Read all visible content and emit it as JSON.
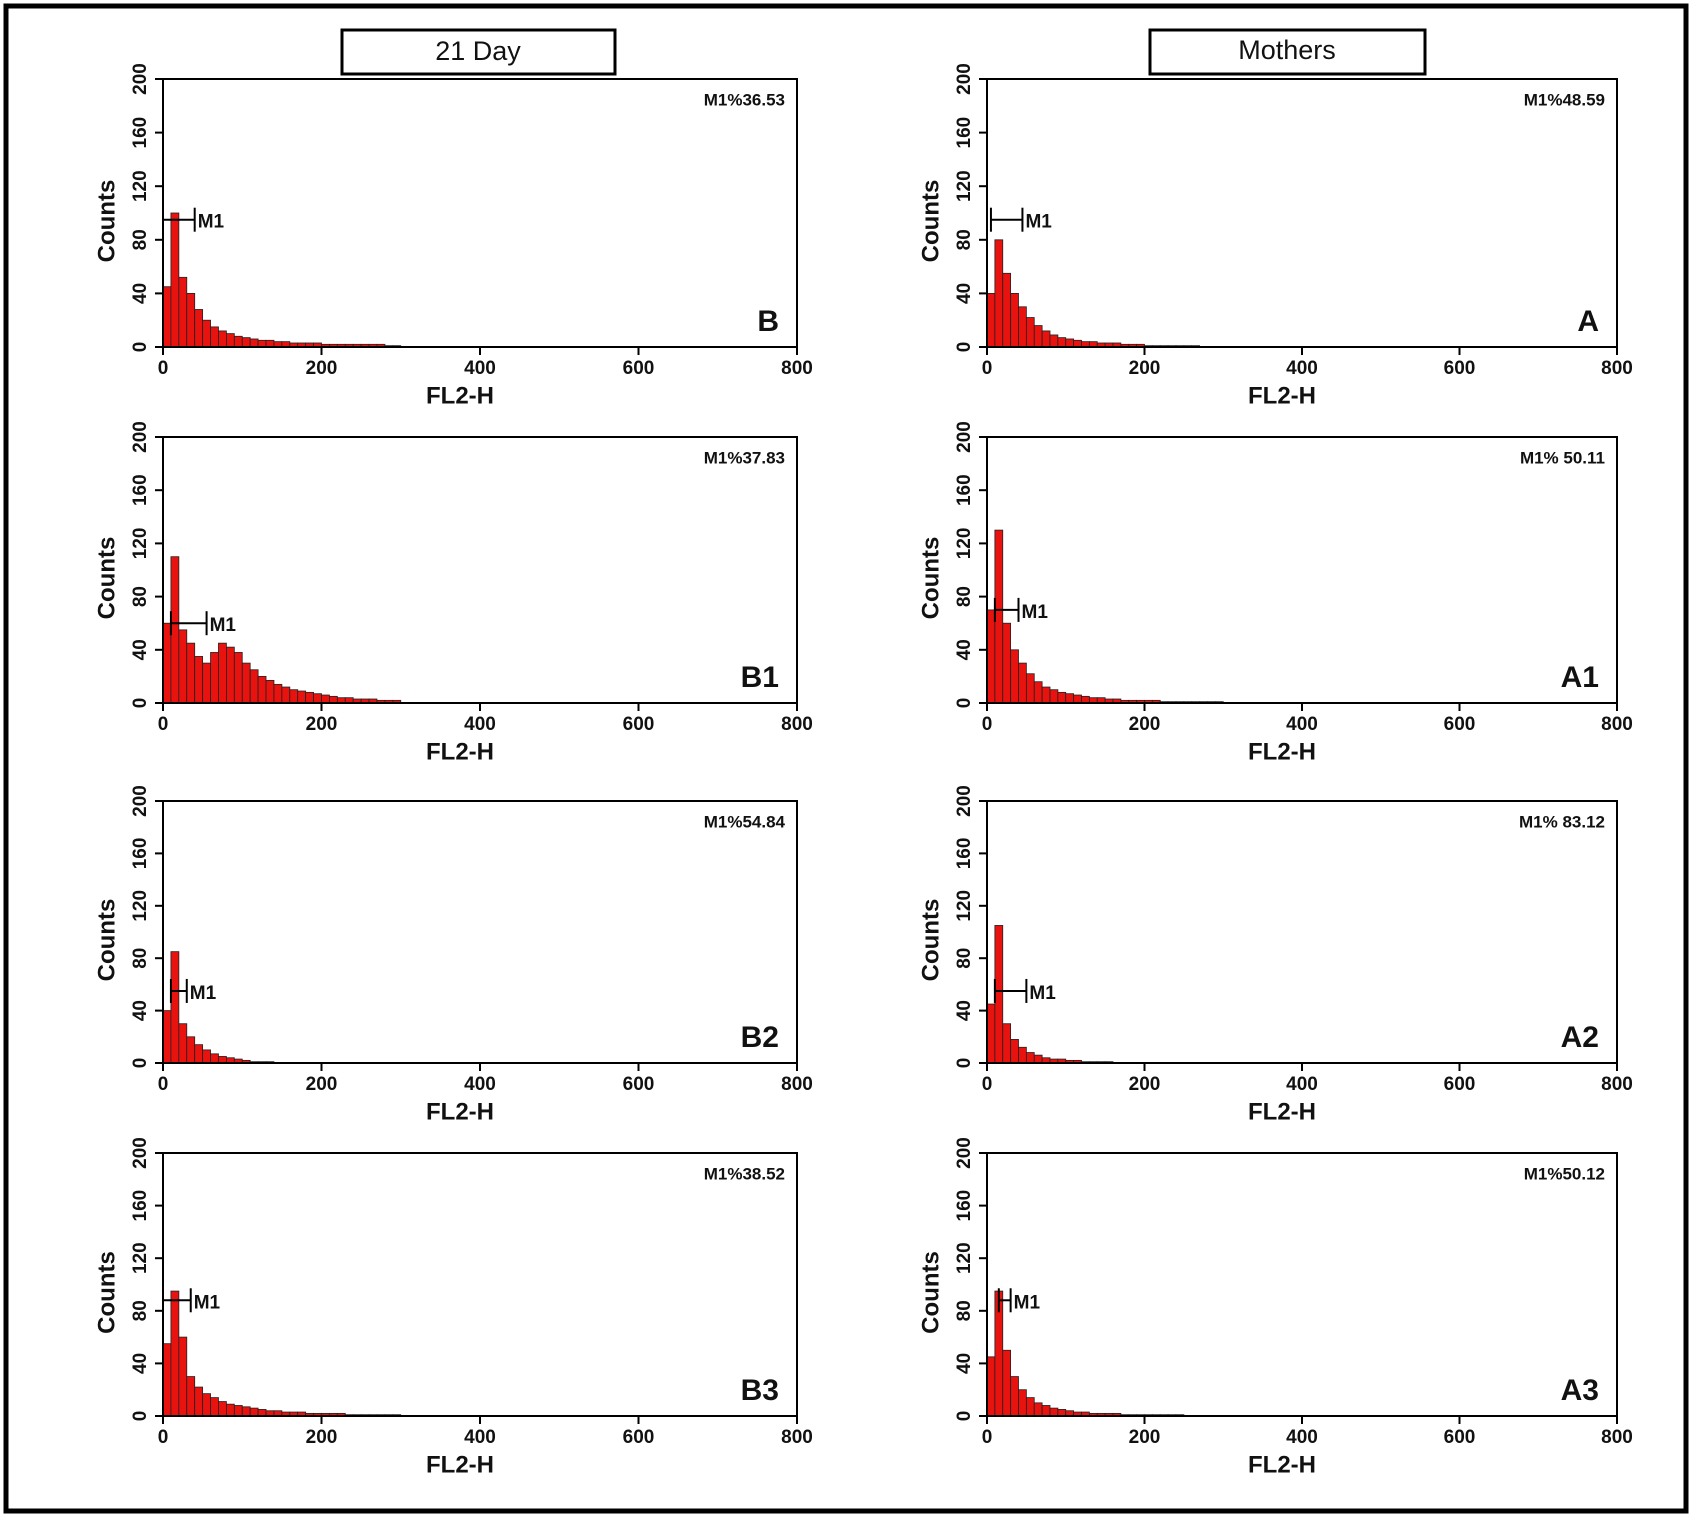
{
  "headers": [
    "21 Day",
    "Mothers"
  ],
  "chart_data": [
    {
      "type": "histogram",
      "panel": "B",
      "annotation": "M1%36.53",
      "xlabel": "FL2-H",
      "ylabel": "Counts",
      "color": "#e8120f",
      "bins": [
        0,
        10,
        20,
        30,
        40,
        50,
        60,
        70,
        80,
        90,
        100,
        110,
        120,
        130,
        140,
        150,
        160,
        170,
        180,
        190,
        200,
        210,
        220,
        230,
        240,
        250,
        260,
        270,
        280,
        290,
        300
      ],
      "counts": [
        45,
        100,
        52,
        40,
        28,
        20,
        15,
        12,
        10,
        8,
        7,
        6,
        5,
        5,
        4,
        4,
        3,
        3,
        3,
        3,
        2,
        2,
        2,
        2,
        2,
        2,
        2,
        2,
        1,
        1
      ],
      "marker": {
        "label": "M1",
        "range": [
          0,
          40
        ],
        "y": 95
      },
      "xlim": [
        0,
        800
      ],
      "xticks": [
        0,
        200,
        400,
        600,
        800
      ],
      "ylim": [
        0,
        200
      ],
      "yticks": [
        0,
        40,
        80,
        120,
        160,
        200
      ]
    },
    {
      "type": "histogram",
      "panel": "B1",
      "annotation": "M1%37.83",
      "xlabel": "FL2-H",
      "ylabel": "Counts",
      "color": "#e8120f",
      "bins": [
        0,
        10,
        20,
        30,
        40,
        50,
        60,
        70,
        80,
        90,
        100,
        110,
        120,
        130,
        140,
        150,
        160,
        170,
        180,
        190,
        200,
        210,
        220,
        230,
        240,
        250,
        260,
        270,
        280,
        290,
        300
      ],
      "counts": [
        60,
        110,
        55,
        45,
        35,
        30,
        38,
        45,
        42,
        38,
        30,
        25,
        20,
        17,
        14,
        12,
        10,
        9,
        8,
        7,
        6,
        5,
        4,
        4,
        3,
        3,
        3,
        2,
        2,
        2
      ],
      "marker": {
        "label": "M1",
        "range": [
          10,
          55
        ],
        "y": 60
      },
      "xlim": [
        0,
        800
      ],
      "xticks": [
        0,
        200,
        400,
        600,
        800
      ],
      "ylim": [
        0,
        200
      ],
      "yticks": [
        0,
        40,
        80,
        120,
        160,
        200
      ]
    },
    {
      "type": "histogram",
      "panel": "B2",
      "annotation": "M1%54.84",
      "xlabel": "FL2-H",
      "ylabel": "Counts",
      "color": "#e8120f",
      "bins": [
        0,
        10,
        20,
        30,
        40,
        50,
        60,
        70,
        80,
        90,
        100,
        110,
        120,
        130,
        140,
        150,
        160,
        170,
        180,
        190,
        200,
        210,
        220,
        230,
        240,
        250,
        260,
        270,
        280,
        290,
        300
      ],
      "counts": [
        40,
        85,
        30,
        20,
        14,
        10,
        7,
        5,
        4,
        3,
        2,
        1,
        1,
        1,
        0,
        0,
        0,
        0,
        0,
        0,
        0,
        0,
        0,
        0,
        0,
        0,
        0,
        0,
        0,
        0
      ],
      "marker": {
        "label": "M1",
        "range": [
          10,
          30
        ],
        "y": 55
      },
      "xlim": [
        0,
        800
      ],
      "xticks": [
        0,
        200,
        400,
        600,
        800
      ],
      "ylim": [
        0,
        200
      ],
      "yticks": [
        0,
        40,
        80,
        120,
        160,
        200
      ]
    },
    {
      "type": "histogram",
      "panel": "B3",
      "annotation": "M1%38.52",
      "xlabel": "FL2-H",
      "ylabel": "Counts",
      "color": "#e8120f",
      "bins": [
        0,
        10,
        20,
        30,
        40,
        50,
        60,
        70,
        80,
        90,
        100,
        110,
        120,
        130,
        140,
        150,
        160,
        170,
        180,
        190,
        200,
        210,
        220,
        230,
        240,
        250,
        260,
        270,
        280,
        290,
        300
      ],
      "counts": [
        55,
        95,
        60,
        30,
        22,
        17,
        14,
        11,
        9,
        8,
        7,
        6,
        5,
        4,
        4,
        3,
        3,
        3,
        2,
        2,
        2,
        2,
        2,
        1,
        1,
        1,
        1,
        1,
        1,
        1
      ],
      "marker": {
        "label": "M1",
        "range": [
          0,
          35
        ],
        "y": 88
      },
      "xlim": [
        0,
        800
      ],
      "xticks": [
        0,
        200,
        400,
        600,
        800
      ],
      "ylim": [
        0,
        200
      ],
      "yticks": [
        0,
        40,
        80,
        120,
        160,
        200
      ]
    },
    {
      "type": "histogram",
      "panel": "A",
      "annotation": "M1%48.59",
      "xlabel": "FL2-H",
      "ylabel": "Counts",
      "color": "#e8120f",
      "bins": [
        0,
        10,
        20,
        30,
        40,
        50,
        60,
        70,
        80,
        90,
        100,
        110,
        120,
        130,
        140,
        150,
        160,
        170,
        180,
        190,
        200,
        210,
        220,
        230,
        240,
        250,
        260,
        270,
        280,
        290,
        300
      ],
      "counts": [
        40,
        80,
        55,
        40,
        30,
        22,
        16,
        12,
        9,
        7,
        6,
        5,
        4,
        4,
        3,
        3,
        3,
        2,
        2,
        2,
        1,
        1,
        1,
        1,
        1,
        1,
        1,
        0,
        0,
        0
      ],
      "marker": {
        "label": "M1",
        "range": [
          5,
          45
        ],
        "y": 95
      },
      "xlim": [
        0,
        800
      ],
      "xticks": [
        0,
        200,
        400,
        600,
        800
      ],
      "ylim": [
        0,
        200
      ],
      "yticks": [
        0,
        40,
        80,
        120,
        160,
        200
      ]
    },
    {
      "type": "histogram",
      "panel": "A1",
      "annotation": "M1% 50.11",
      "xlabel": "FL2-H",
      "ylabel": "Counts",
      "color": "#e8120f",
      "bins": [
        0,
        10,
        20,
        30,
        40,
        50,
        60,
        70,
        80,
        90,
        100,
        110,
        120,
        130,
        140,
        150,
        160,
        170,
        180,
        190,
        200,
        210,
        220,
        230,
        240,
        250,
        260,
        270,
        280,
        290,
        300
      ],
      "counts": [
        70,
        130,
        60,
        40,
        30,
        22,
        16,
        12,
        10,
        8,
        7,
        6,
        5,
        4,
        4,
        3,
        3,
        2,
        2,
        2,
        2,
        2,
        1,
        1,
        1,
        1,
        1,
        1,
        1,
        1
      ],
      "marker": {
        "label": "M1",
        "range": [
          10,
          40
        ],
        "y": 70
      },
      "xlim": [
        0,
        800
      ],
      "xticks": [
        0,
        200,
        400,
        600,
        800
      ],
      "ylim": [
        0,
        200
      ],
      "yticks": [
        0,
        40,
        80,
        120,
        160,
        200
      ]
    },
    {
      "type": "histogram",
      "panel": "A2",
      "annotation": "M1% 83.12",
      "xlabel": "FL2-H",
      "ylabel": "Counts",
      "color": "#e8120f",
      "bins": [
        0,
        10,
        20,
        30,
        40,
        50,
        60,
        70,
        80,
        90,
        100,
        110,
        120,
        130,
        140,
        150,
        160,
        170,
        180,
        190,
        200,
        210,
        220,
        230,
        240,
        250,
        260,
        270,
        280,
        290,
        300
      ],
      "counts": [
        45,
        105,
        30,
        18,
        12,
        8,
        6,
        4,
        3,
        3,
        2,
        2,
        1,
        1,
        1,
        1,
        0,
        0,
        0,
        0,
        0,
        0,
        0,
        0,
        0,
        0,
        0,
        0,
        0,
        0
      ],
      "marker": {
        "label": "M1",
        "range": [
          10,
          50
        ],
        "y": 55
      },
      "xlim": [
        0,
        800
      ],
      "xticks": [
        0,
        200,
        400,
        600,
        800
      ],
      "ylim": [
        0,
        200
      ],
      "yticks": [
        0,
        40,
        80,
        120,
        160,
        200
      ]
    },
    {
      "type": "histogram",
      "panel": "A3",
      "annotation": "M1%50.12",
      "xlabel": "FL2-H",
      "ylabel": "Counts",
      "color": "#e8120f",
      "bins": [
        0,
        10,
        20,
        30,
        40,
        50,
        60,
        70,
        80,
        90,
        100,
        110,
        120,
        130,
        140,
        150,
        160,
        170,
        180,
        190,
        200,
        210,
        220,
        230,
        240,
        250,
        260,
        270,
        280,
        290,
        300
      ],
      "counts": [
        45,
        95,
        50,
        30,
        20,
        14,
        10,
        8,
        6,
        5,
        4,
        3,
        3,
        2,
        2,
        2,
        2,
        1,
        1,
        1,
        1,
        1,
        1,
        1,
        1,
        0,
        0,
        0,
        0,
        0
      ],
      "marker": {
        "label": "M1",
        "range": [
          15,
          30
        ],
        "y": 88
      },
      "xlim": [
        0,
        800
      ],
      "xticks": [
        0,
        200,
        400,
        600,
        800
      ],
      "ylim": [
        0,
        200
      ],
      "yticks": [
        0,
        40,
        80,
        120,
        160,
        200
      ]
    }
  ]
}
